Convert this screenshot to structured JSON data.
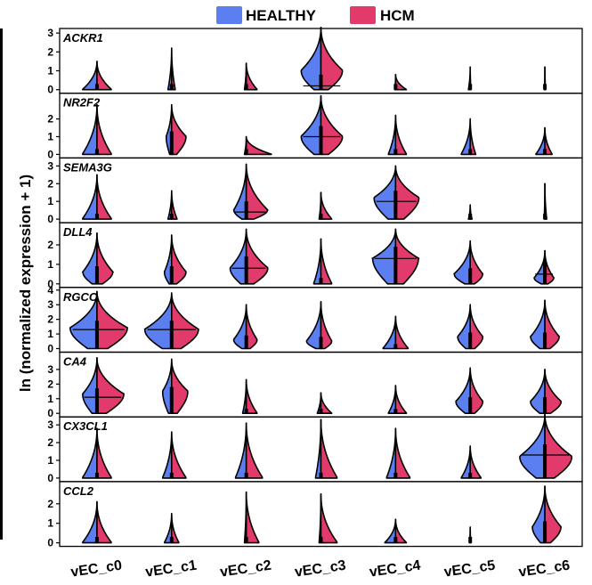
{
  "legend": {
    "healthy_label": "HEALTHY",
    "hcm_label": "HCM",
    "healthy_color": "#5b7ff0",
    "hcm_color": "#e23a6a"
  },
  "ylabel": "ln (normalized expression + 1)",
  "chart_data": {
    "type": "split-violin",
    "categories": [
      "vEC_c0",
      "vEC_c1",
      "vEC_c2",
      "vEC_c3",
      "vEC_c4",
      "vEC_c5",
      "vEC_c6"
    ],
    "series_names": [
      "HEALTHY",
      "HCM"
    ],
    "genes": [
      {
        "name": "ACKR1",
        "yticks": [
          0,
          1,
          2,
          3
        ],
        "ylim": [
          0,
          3.1
        ],
        "violins": [
          {
            "max": 1.5,
            "peak": 0.0,
            "h": 0.4,
            "c": 0.4,
            "med": null
          },
          {
            "max": 2.2,
            "peak": 0.0,
            "h": 0.1,
            "c": 0.1,
            "med": null
          },
          {
            "max": 1.4,
            "peak": 0.0,
            "h": 0.05,
            "c": 0.3,
            "med": null
          },
          {
            "max": 3.3,
            "peak": 1.0,
            "h": 0.55,
            "c": 0.6,
            "med": 0.2
          },
          {
            "max": 0.8,
            "peak": 0.0,
            "h": 0.02,
            "c": 0.3,
            "med": null
          },
          {
            "max": 1.2,
            "peak": 0.0,
            "h": 0.05,
            "c": 0.02,
            "med": null
          },
          {
            "max": 1.2,
            "peak": 0.0,
            "h": 0.01,
            "c": 0.02,
            "med": null
          }
        ]
      },
      {
        "name": "NR2F2",
        "yticks": [
          0,
          1,
          2
        ],
        "ylim": [
          0,
          3.3
        ],
        "violins": [
          {
            "max": 2.8,
            "peak": 0.0,
            "h": 0.4,
            "c": 0.4,
            "med": null
          },
          {
            "max": 2.8,
            "peak": 1.0,
            "h": 0.15,
            "c": 0.4,
            "med": null
          },
          {
            "max": 1.0,
            "peak": 0.0,
            "h": 0.05,
            "c": 0.7,
            "med": null
          },
          {
            "max": 3.3,
            "peak": 1.0,
            "h": 0.55,
            "c": 0.6,
            "med": 1.0
          },
          {
            "max": 2.2,
            "peak": 0.0,
            "h": 0.2,
            "c": 0.3,
            "med": null
          },
          {
            "max": 2.0,
            "peak": 0.0,
            "h": 0.25,
            "c": 0.15,
            "med": null
          },
          {
            "max": 1.5,
            "peak": 0.0,
            "h": 0.25,
            "c": 0.2,
            "med": null
          }
        ]
      },
      {
        "name": "SEMA3G",
        "yticks": [
          0,
          1,
          2,
          3
        ],
        "ylim": [
          0,
          3.3
        ],
        "violins": [
          {
            "max": 2.5,
            "peak": 0.0,
            "h": 0.4,
            "c": 0.4,
            "med": null
          },
          {
            "max": 1.6,
            "peak": 0.0,
            "h": 0.1,
            "c": 0.15,
            "med": null
          },
          {
            "max": 3.1,
            "peak": 0.5,
            "h": 0.35,
            "c": 0.6,
            "med": 0.4
          },
          {
            "max": 1.5,
            "peak": 0.0,
            "h": 0.05,
            "c": 0.3,
            "med": null
          },
          {
            "max": 3.0,
            "peak": 1.2,
            "h": 0.6,
            "c": 0.65,
            "med": 1.0
          },
          {
            "max": 0.8,
            "peak": 0.0,
            "h": 0.05,
            "c": 0.05,
            "med": null
          },
          {
            "max": 2.0,
            "peak": 0.0,
            "h": 0.02,
            "c": 0.05,
            "med": null
          }
        ]
      },
      {
        "name": "DLL4",
        "yticks": [
          0,
          1,
          2
        ],
        "ylim": [
          0,
          3.0
        ],
        "violins": [
          {
            "max": 2.6,
            "peak": 0.6,
            "h": 0.4,
            "c": 0.45,
            "med": null
          },
          {
            "max": 2.5,
            "peak": 0.6,
            "h": 0.2,
            "c": 0.4,
            "med": null
          },
          {
            "max": 2.8,
            "peak": 0.8,
            "h": 0.45,
            "c": 0.6,
            "med": 0.8
          },
          {
            "max": 2.3,
            "peak": 0.0,
            "h": 0.2,
            "c": 0.3,
            "med": null
          },
          {
            "max": 2.8,
            "peak": 1.3,
            "h": 0.65,
            "c": 0.65,
            "med": 1.3
          },
          {
            "max": 2.2,
            "peak": 0.5,
            "h": 0.45,
            "c": 0.35,
            "med": null
          },
          {
            "max": 1.7,
            "peak": 0.3,
            "h": 0.3,
            "c": 0.25,
            "med": 0.5
          }
        ]
      },
      {
        "name": "RGCC",
        "yticks": [
          0,
          1,
          2,
          3,
          4
        ],
        "ylim": [
          0,
          4.0
        ],
        "violins": [
          {
            "max": 3.9,
            "peak": 1.4,
            "h": 0.75,
            "c": 0.85,
            "med": 1.3
          },
          {
            "max": 3.8,
            "peak": 1.3,
            "h": 0.75,
            "c": 0.75,
            "med": 1.3
          },
          {
            "max": 3.0,
            "peak": 0.6,
            "h": 0.35,
            "c": 0.3,
            "med": null
          },
          {
            "max": 3.2,
            "peak": 0.5,
            "h": 0.4,
            "c": 0.3,
            "med": null
          },
          {
            "max": 2.2,
            "peak": 0.0,
            "h": 0.35,
            "c": 0.35,
            "med": null
          },
          {
            "max": 3.0,
            "peak": 0.8,
            "h": 0.35,
            "c": 0.35,
            "med": null
          },
          {
            "max": 3.3,
            "peak": 0.8,
            "h": 0.4,
            "c": 0.4,
            "med": null
          }
        ]
      },
      {
        "name": "CA4",
        "yticks": [
          0,
          1,
          2,
          3
        ],
        "ylim": [
          0,
          4.0
        ],
        "violins": [
          {
            "max": 3.8,
            "peak": 1.3,
            "h": 0.4,
            "c": 0.75,
            "med": 1.1
          },
          {
            "max": 3.7,
            "peak": 1.5,
            "h": 0.25,
            "c": 0.45,
            "med": null
          },
          {
            "max": 2.3,
            "peak": 0.0,
            "h": 0.1,
            "c": 0.3,
            "med": null
          },
          {
            "max": 1.4,
            "peak": 0.0,
            "h": 0.1,
            "c": 0.3,
            "med": null
          },
          {
            "max": 1.9,
            "peak": 0.0,
            "h": 0.2,
            "c": 0.3,
            "med": null
          },
          {
            "max": 3.1,
            "peak": 0.8,
            "h": 0.4,
            "c": 0.35,
            "med": null
          },
          {
            "max": 3.0,
            "peak": 0.8,
            "h": 0.4,
            "c": 0.45,
            "med": null
          }
        ]
      },
      {
        "name": "CX3CL1",
        "yticks": [
          0,
          1,
          2,
          3
        ],
        "ylim": [
          0,
          3.3
        ],
        "violins": [
          {
            "max": 2.8,
            "peak": 0.0,
            "h": 0.4,
            "c": 0.4,
            "med": null
          },
          {
            "max": 2.6,
            "peak": 0.0,
            "h": 0.25,
            "c": 0.4,
            "med": null
          },
          {
            "max": 3.1,
            "peak": 0.0,
            "h": 0.3,
            "c": 0.45,
            "med": null
          },
          {
            "max": 3.3,
            "peak": 0.0,
            "h": 0.15,
            "c": 0.45,
            "med": null
          },
          {
            "max": 2.8,
            "peak": 0.0,
            "h": 0.25,
            "c": 0.4,
            "med": null
          },
          {
            "max": 1.8,
            "peak": 0.0,
            "h": 0.25,
            "c": 0.3,
            "med": null
          },
          {
            "max": 3.6,
            "peak": 1.2,
            "h": 0.7,
            "c": 0.75,
            "med": 1.3
          }
        ]
      },
      {
        "name": "CCL2",
        "yticks": [
          0,
          1,
          2
        ],
        "ylim": [
          0,
          3.0
        ],
        "violins": [
          {
            "max": 2.1,
            "peak": 0.0,
            "h": 0.4,
            "c": 0.4,
            "med": null
          },
          {
            "max": 1.5,
            "peak": 0.0,
            "h": 0.2,
            "c": 0.2,
            "med": null
          },
          {
            "max": 2.6,
            "peak": 0.0,
            "h": 0.05,
            "c": 0.35,
            "med": null
          },
          {
            "max": 2.5,
            "peak": 0.0,
            "h": 0.05,
            "c": 0.45,
            "med": null
          },
          {
            "max": 1.2,
            "peak": 0.0,
            "h": 0.3,
            "c": 0.3,
            "med": null
          },
          {
            "max": 0.8,
            "peak": 0.0,
            "h": 0.02,
            "c": 0.02,
            "med": null
          },
          {
            "max": 2.9,
            "peak": 0.8,
            "h": 0.35,
            "c": 0.45,
            "med": null
          }
        ]
      }
    ]
  }
}
